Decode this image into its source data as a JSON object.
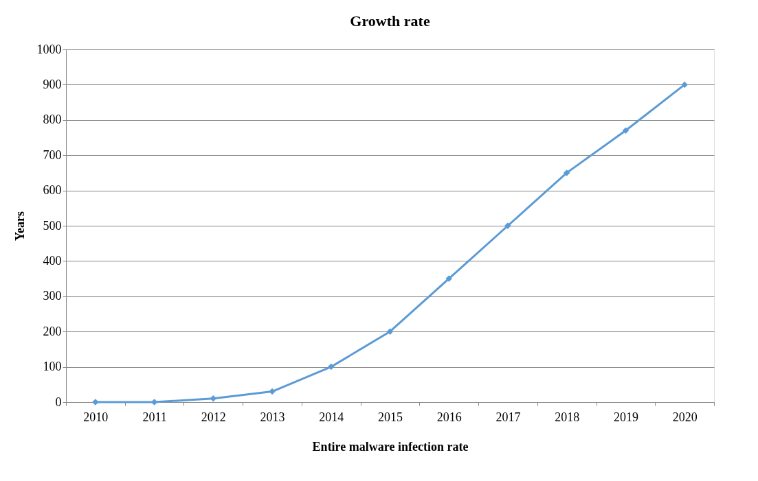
{
  "chart_data": {
    "type": "line",
    "title": "Growth rate",
    "xlabel": "Entire malware infection rate",
    "ylabel": "Years",
    "categories": [
      "2010",
      "2011",
      "2012",
      "2013",
      "2014",
      "2015",
      "2016",
      "2017",
      "2018",
      "2019",
      "2020"
    ],
    "series": [
      {
        "color": "#5b9bd5",
        "values": [
          0,
          0,
          10,
          30,
          100,
          200,
          350,
          500,
          650,
          770,
          900
        ]
      }
    ],
    "ylim": [
      0,
      1000
    ],
    "yticks": [
      0,
      100,
      200,
      300,
      400,
      500,
      600,
      700,
      800,
      900,
      1000
    ],
    "grid": "y",
    "marker": "diamond",
    "line_style": "solid"
  }
}
